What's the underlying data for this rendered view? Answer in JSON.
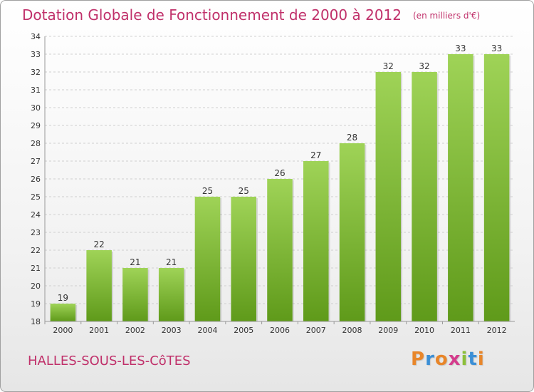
{
  "header": {
    "title": "Dotation Globale de Fonctionnement de 2000 à 2012",
    "subtitle": "(en milliers d'€)"
  },
  "footer": {
    "commune": "HALLES-SOUS-LES-CôTES",
    "brand": "Proxiti",
    "brand_colors": [
      "#e8862a",
      "#3b8fd6",
      "#e8862a",
      "#d43c8c",
      "#8cbf3a",
      "#3b8fd6",
      "#e8862a"
    ]
  },
  "colors": {
    "title": "#c0306a",
    "bar_light": "#9fd357",
    "bar_dark": "#5f9a1a",
    "grid": "#cfcfcf",
    "axis_text": "#333333"
  },
  "chart_data": {
    "type": "bar",
    "title": "Dotation Globale de Fonctionnement de 2000 à 2012",
    "subtitle": "(en milliers d'€)",
    "categories": [
      "2000",
      "2001",
      "2002",
      "2003",
      "2004",
      "2005",
      "2006",
      "2007",
      "2008",
      "2009",
      "2010",
      "2011",
      "2012"
    ],
    "values": [
      19,
      22,
      21,
      21,
      25,
      25,
      26,
      27,
      28,
      32,
      32,
      33,
      33
    ],
    "xlabel": "",
    "ylabel": "",
    "ylim": [
      18,
      34
    ],
    "yticks": [
      18,
      19,
      20,
      21,
      22,
      23,
      24,
      25,
      26,
      27,
      28,
      29,
      30,
      31,
      32,
      33,
      34
    ],
    "grid": true,
    "legend": "none",
    "data_labels": true
  }
}
